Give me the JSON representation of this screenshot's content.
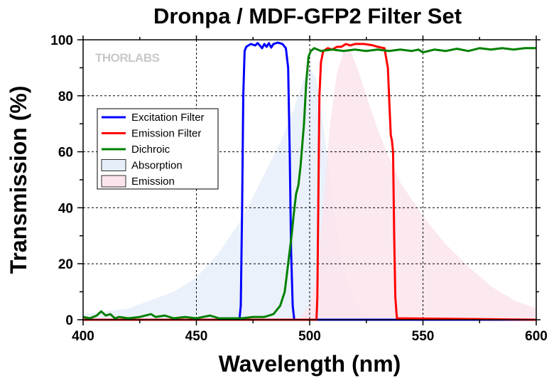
{
  "chart_data": {
    "type": "line",
    "title": "Dronpa / MDF-GFP2 Filter Set",
    "xlabel": "Wavelength (nm)",
    "ylabel": "Transmission (%)",
    "xlim": [
      400,
      600
    ],
    "ylim": [
      0,
      100
    ],
    "xticks": [
      400,
      450,
      500,
      550,
      600
    ],
    "yticks": [
      0,
      20,
      40,
      60,
      80,
      100
    ],
    "grid": true,
    "watermark": "THORLABS",
    "legend_position": "left-middle",
    "series": [
      {
        "name": "Excitation Filter",
        "kind": "line",
        "color": "#0000ff",
        "points": [
          [
            400,
            0
          ],
          [
            469,
            0
          ],
          [
            469.6,
            5
          ],
          [
            470.2,
            40
          ],
          [
            470.7,
            80
          ],
          [
            471.3,
            96
          ],
          [
            472,
            97.5
          ],
          [
            474,
            98.5
          ],
          [
            476,
            98
          ],
          [
            477,
            98.8
          ],
          [
            478,
            98
          ],
          [
            479,
            97
          ],
          [
            480,
            98.5
          ],
          [
            481,
            97.5
          ],
          [
            482,
            98.8
          ],
          [
            483,
            97.2
          ],
          [
            484,
            98.5
          ],
          [
            486,
            99
          ],
          [
            488,
            98.5
          ],
          [
            489.5,
            97
          ],
          [
            490.5,
            90
          ],
          [
            491.2,
            60
          ],
          [
            491.8,
            25
          ],
          [
            492.5,
            5
          ],
          [
            493.2,
            0
          ],
          [
            600,
            0
          ]
        ]
      },
      {
        "name": "Emission Filter",
        "kind": "line",
        "color": "#ff0000",
        "points": [
          [
            400,
            0
          ],
          [
            503,
            0
          ],
          [
            503.4,
            8
          ],
          [
            503.8,
            40
          ],
          [
            504.3,
            80
          ],
          [
            505,
            92
          ],
          [
            506,
            96
          ],
          [
            508,
            97
          ],
          [
            510,
            96.5
          ],
          [
            512,
            97.5
          ],
          [
            514,
            97.5
          ],
          [
            516,
            98.5
          ],
          [
            518,
            98
          ],
          [
            520,
            98.5
          ],
          [
            524,
            98.5
          ],
          [
            528,
            98
          ],
          [
            530,
            97.5
          ],
          [
            533,
            97
          ],
          [
            534.5,
            90
          ],
          [
            535.3,
            75
          ],
          [
            535.8,
            66
          ],
          [
            536.3,
            64
          ],
          [
            536.8,
            60
          ],
          [
            537.3,
            30
          ],
          [
            537.8,
            8
          ],
          [
            538.5,
            0.5
          ],
          [
            600,
            0
          ]
        ]
      },
      {
        "name": "Dichroic",
        "kind": "line",
        "color": "#008000",
        "points": [
          [
            400,
            1
          ],
          [
            403,
            0.5
          ],
          [
            406,
            1.5
          ],
          [
            408,
            3
          ],
          [
            410,
            1.5
          ],
          [
            412,
            2
          ],
          [
            414,
            0.5
          ],
          [
            416,
            1
          ],
          [
            420,
            0.5
          ],
          [
            425,
            1
          ],
          [
            430,
            2
          ],
          [
            432,
            1
          ],
          [
            436,
            1.5
          ],
          [
            440,
            0.5
          ],
          [
            445,
            1
          ],
          [
            450,
            0.5
          ],
          [
            456,
            1.5
          ],
          [
            460,
            0.5
          ],
          [
            465,
            0.5
          ],
          [
            470,
            0.5
          ],
          [
            475,
            1
          ],
          [
            480,
            1
          ],
          [
            484,
            2
          ],
          [
            487,
            5
          ],
          [
            489,
            10
          ],
          [
            490.5,
            20
          ],
          [
            492,
            30
          ],
          [
            493,
            38
          ],
          [
            494,
            45
          ],
          [
            495,
            48
          ],
          [
            496,
            55
          ],
          [
            497.5,
            70
          ],
          [
            498.5,
            85
          ],
          [
            499.5,
            94
          ],
          [
            500.5,
            96
          ],
          [
            502,
            97
          ],
          [
            505,
            96
          ],
          [
            510,
            96.5
          ],
          [
            515,
            96
          ],
          [
            520,
            96.5
          ],
          [
            525,
            96
          ],
          [
            530,
            96.5
          ],
          [
            535,
            96
          ],
          [
            540,
            96.5
          ],
          [
            545,
            96
          ],
          [
            548,
            96.5
          ],
          [
            550,
            95.5
          ],
          [
            555,
            96.5
          ],
          [
            560,
            96
          ],
          [
            565,
            96.8
          ],
          [
            570,
            96
          ],
          [
            575,
            97
          ],
          [
            580,
            96.5
          ],
          [
            585,
            97
          ],
          [
            590,
            96.5
          ],
          [
            595,
            97
          ],
          [
            600,
            97
          ]
        ]
      },
      {
        "name": "Absorption",
        "kind": "area",
        "color": "#e6eefa",
        "points": [
          [
            400,
            2
          ],
          [
            410,
            3
          ],
          [
            420,
            4
          ],
          [
            430,
            7
          ],
          [
            440,
            10
          ],
          [
            450,
            15
          ],
          [
            460,
            24
          ],
          [
            470,
            36
          ],
          [
            480,
            52
          ],
          [
            488,
            65
          ],
          [
            493,
            75
          ],
          [
            497,
            85
          ],
          [
            500,
            90
          ],
          [
            503,
            86
          ],
          [
            506,
            70
          ],
          [
            509,
            50
          ],
          [
            512,
            32
          ],
          [
            516,
            15
          ],
          [
            520,
            6
          ],
          [
            525,
            2
          ],
          [
            530,
            0
          ],
          [
            600,
            0
          ]
        ]
      },
      {
        "name": "Emission",
        "kind": "area",
        "color": "#fbe4ec",
        "points": [
          [
            400,
            0
          ],
          [
            495,
            0
          ],
          [
            500,
            5
          ],
          [
            503,
            15
          ],
          [
            506,
            40
          ],
          [
            509,
            70
          ],
          [
            512,
            88
          ],
          [
            515,
            96
          ],
          [
            518,
            96
          ],
          [
            521,
            90
          ],
          [
            525,
            80
          ],
          [
            530,
            68
          ],
          [
            535,
            58
          ],
          [
            540,
            49
          ],
          [
            550,
            37
          ],
          [
            560,
            27
          ],
          [
            570,
            19
          ],
          [
            580,
            12
          ],
          [
            590,
            7
          ],
          [
            600,
            4
          ]
        ]
      }
    ]
  }
}
